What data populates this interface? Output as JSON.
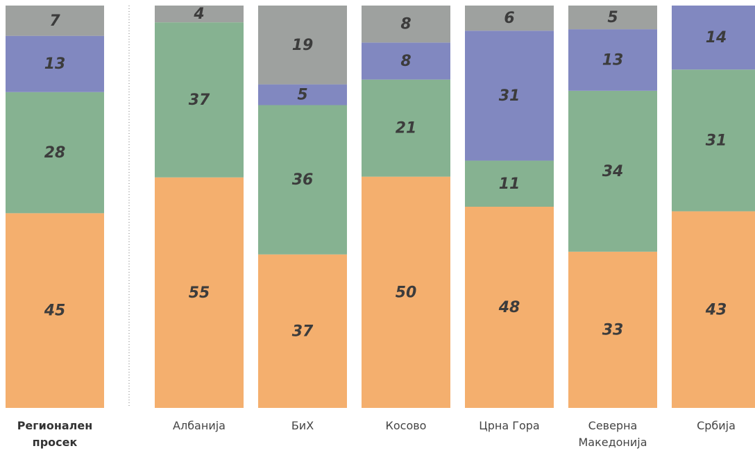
{
  "chart_data": {
    "type": "stacked_bar_100",
    "categories": [
      "Регионален просек",
      "Албанија",
      "БиХ",
      "Косово",
      "Црна Гора",
      "Северна Македонија",
      "Србија"
    ],
    "series": [
      {
        "color": "#f4af6e",
        "values": [
          45,
          55,
          37,
          50,
          48,
          33,
          43
        ]
      },
      {
        "color": "#86b291",
        "values": [
          28,
          37,
          36,
          21,
          11,
          34,
          31
        ]
      },
      {
        "color": "#8188c0",
        "values": [
          13,
          null,
          5,
          8,
          31,
          13,
          14
        ]
      },
      {
        "color": "#9ea19f",
        "values": [
          7,
          4,
          19,
          8,
          6,
          5,
          null
        ]
      }
    ]
  }
}
